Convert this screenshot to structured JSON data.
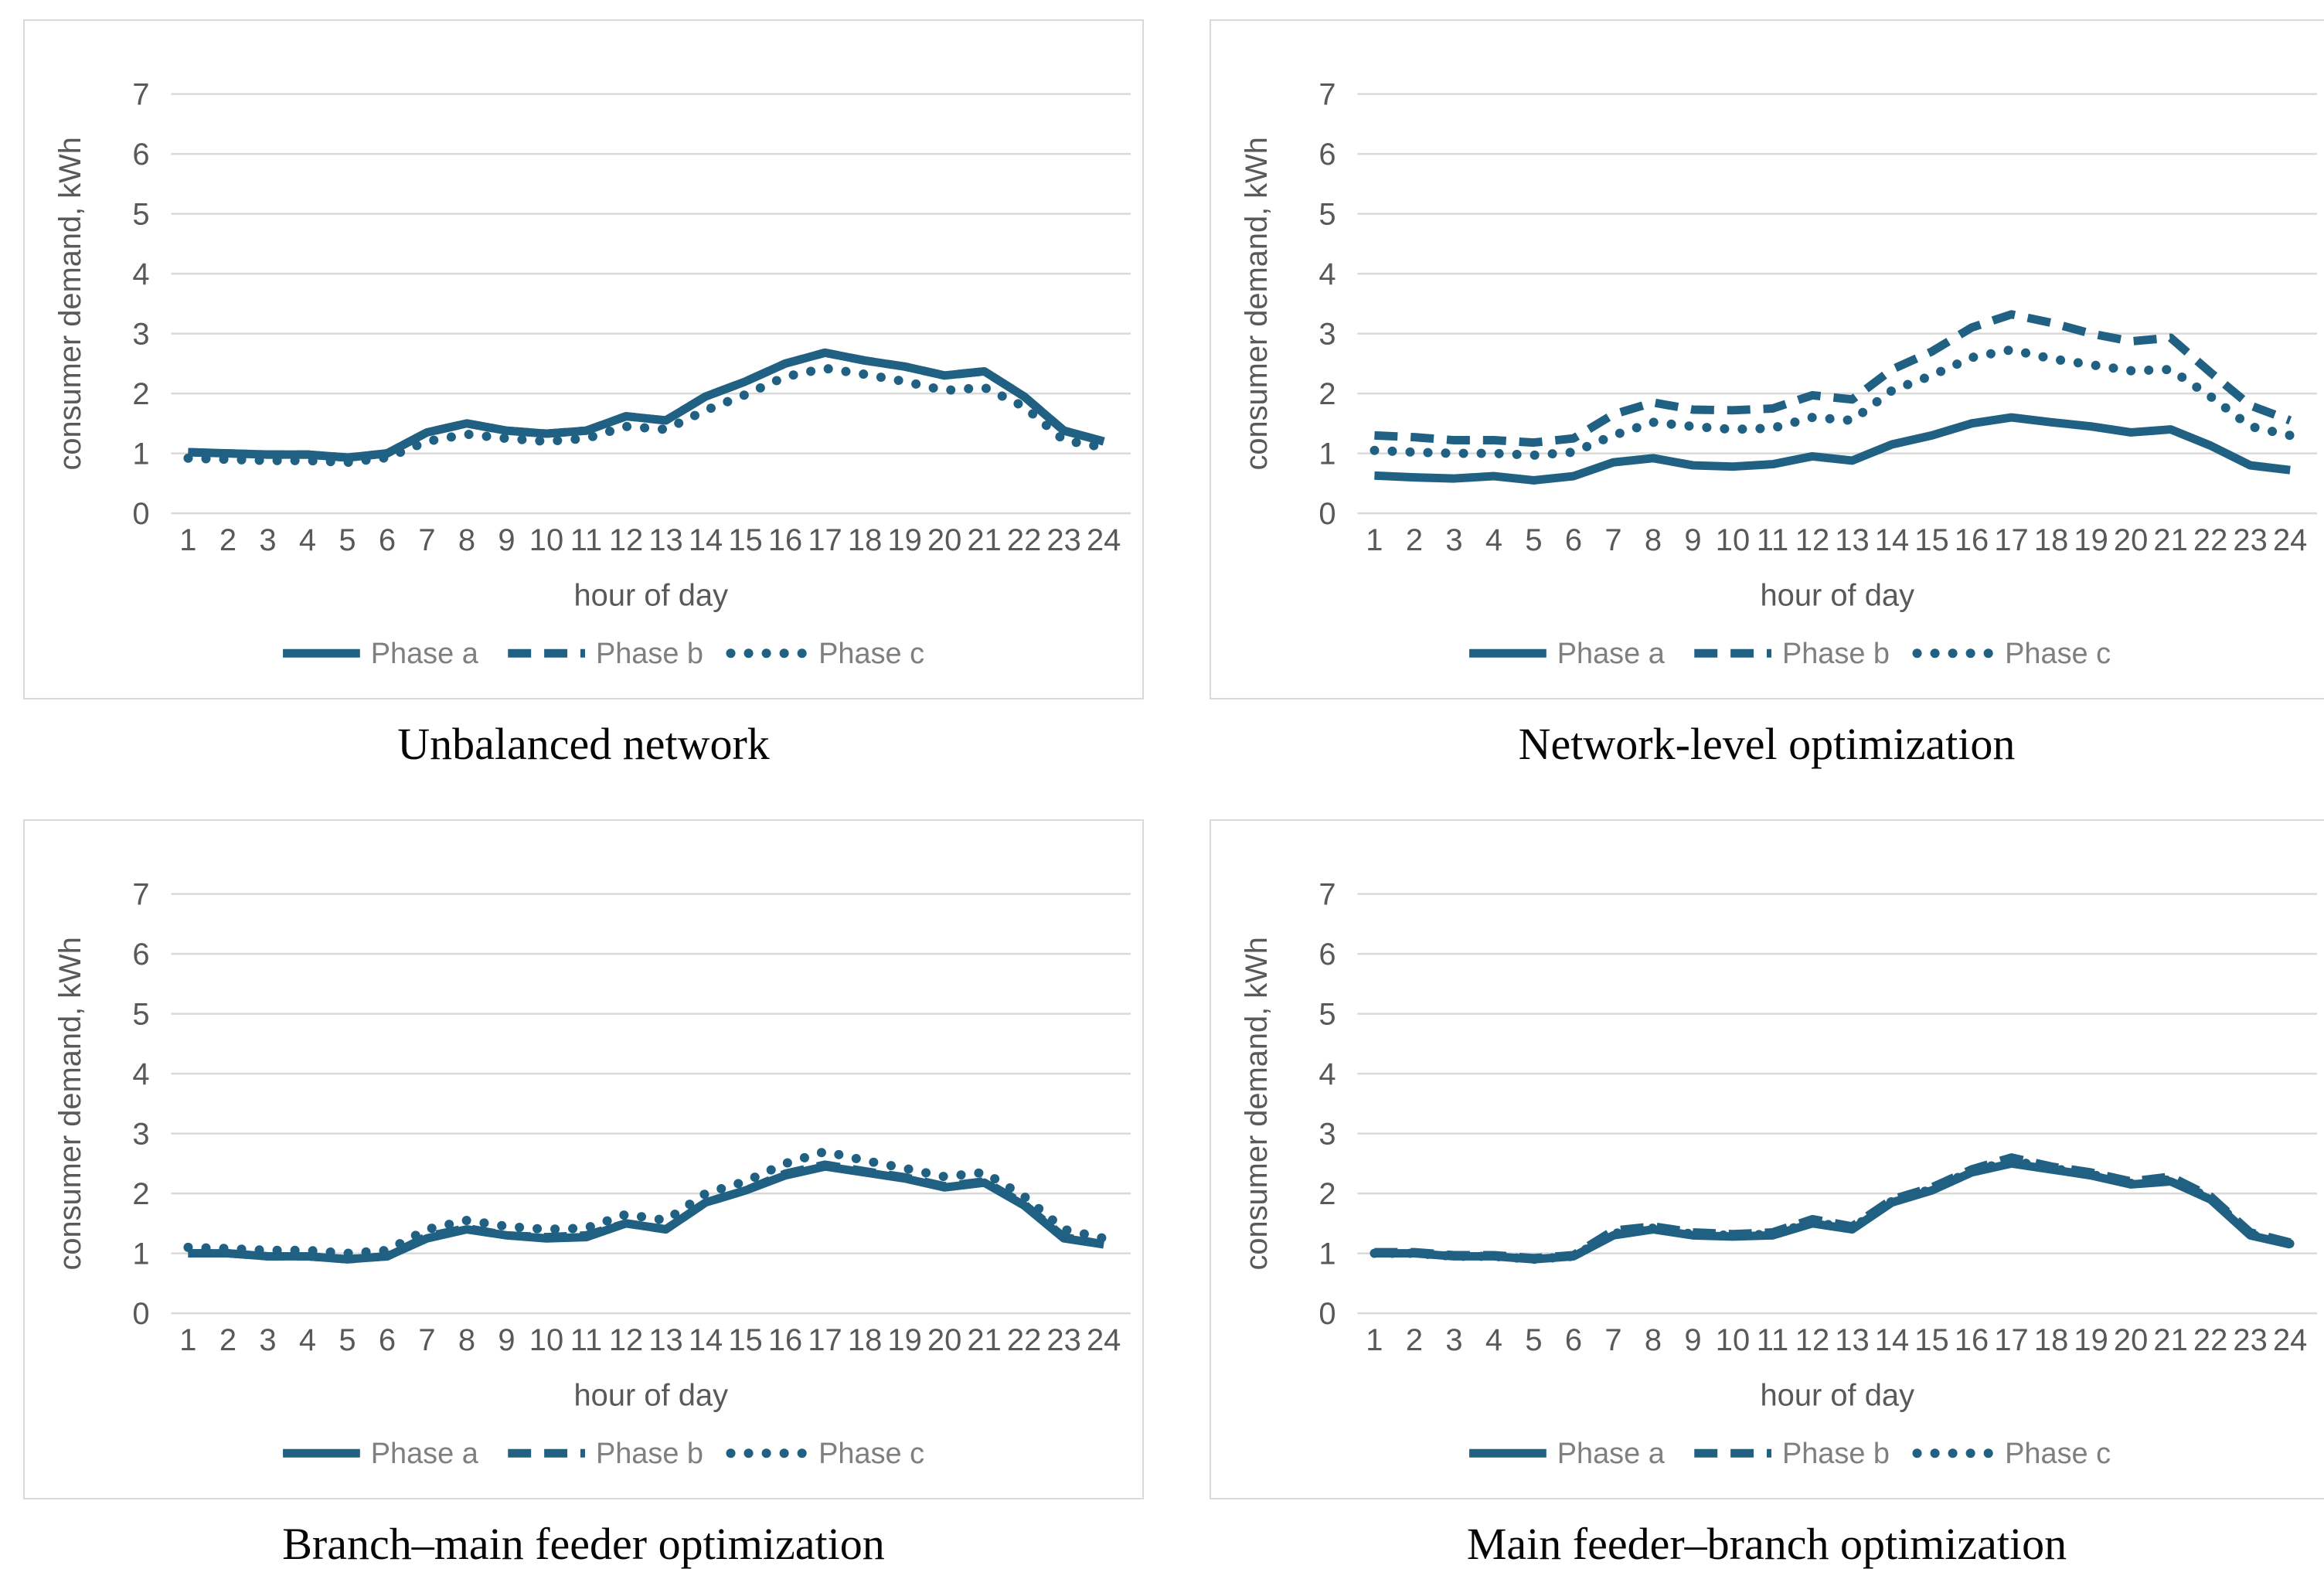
{
  "shared": {
    "y_label": "consumer demand, kWh",
    "x_label": "hour of day",
    "legend": [
      {
        "label": "Phase a",
        "style": "solid"
      },
      {
        "label": "Phase b",
        "style": "dashed"
      },
      {
        "label": "Phase c",
        "style": "dotted"
      }
    ],
    "colors": {
      "line": "#206082",
      "grid": "#D9D9D9",
      "tick_text": "#595959",
      "axis_title_text": "#595959",
      "legend_text": "#7F7F7F",
      "caption_text": "#060606",
      "panel_border": "#D9D9D9"
    },
    "ylim": [
      0,
      7
    ],
    "y_ticks": [
      0,
      1,
      2,
      3,
      4,
      5,
      6,
      7
    ],
    "grid": "horizontal-only",
    "legend_position": "bottom-center"
  },
  "chart_data": [
    {
      "type": "line",
      "caption": "Unbalanced network",
      "xlabel": "hour of day",
      "ylabel": "consumer demand, kWh",
      "ylim": [
        0,
        7
      ],
      "x": [
        1,
        2,
        3,
        4,
        5,
        6,
        7,
        8,
        9,
        10,
        11,
        12,
        13,
        14,
        15,
        16,
        17,
        18,
        19,
        20,
        21,
        22,
        23,
        24
      ],
      "series": [
        {
          "name": "Phase a",
          "style": "solid",
          "values": [
            1.02,
            1.0,
            0.98,
            0.98,
            0.93,
            1.0,
            1.35,
            1.5,
            1.38,
            1.33,
            1.38,
            1.62,
            1.55,
            1.95,
            2.2,
            2.5,
            2.68,
            2.55,
            2.45,
            2.3,
            2.37,
            1.95,
            1.38,
            1.2
          ]
        },
        {
          "name": "Phase b",
          "style": "dashed",
          "values": [
            1.02,
            1.0,
            0.98,
            0.98,
            0.93,
            1.0,
            1.35,
            1.5,
            1.38,
            1.33,
            1.38,
            1.62,
            1.55,
            1.95,
            2.2,
            2.5,
            2.68,
            2.55,
            2.45,
            2.3,
            2.37,
            1.95,
            1.38,
            1.2
          ]
        },
        {
          "name": "Phase c",
          "style": "dotted",
          "values": [
            0.92,
            0.9,
            0.88,
            0.88,
            0.85,
            0.93,
            1.2,
            1.32,
            1.25,
            1.2,
            1.25,
            1.45,
            1.4,
            1.72,
            1.98,
            2.28,
            2.42,
            2.32,
            2.2,
            2.05,
            2.1,
            1.78,
            1.22,
            1.1
          ]
        }
      ]
    },
    {
      "type": "line",
      "caption": "Network-level optimization",
      "xlabel": "hour of day",
      "ylabel": "consumer demand, kWh",
      "ylim": [
        0,
        7
      ],
      "x": [
        1,
        2,
        3,
        4,
        5,
        6,
        7,
        8,
        9,
        10,
        11,
        12,
        13,
        14,
        15,
        16,
        17,
        18,
        19,
        20,
        21,
        22,
        23,
        24
      ],
      "series": [
        {
          "name": "Phase a",
          "style": "solid",
          "values": [
            0.63,
            0.6,
            0.58,
            0.62,
            0.55,
            0.62,
            0.85,
            0.92,
            0.8,
            0.78,
            0.82,
            0.95,
            0.88,
            1.15,
            1.3,
            1.5,
            1.6,
            1.52,
            1.45,
            1.35,
            1.4,
            1.13,
            0.8,
            0.72
          ]
        },
        {
          "name": "Phase b",
          "style": "dashed",
          "values": [
            1.3,
            1.27,
            1.22,
            1.22,
            1.18,
            1.25,
            1.65,
            1.85,
            1.73,
            1.72,
            1.75,
            1.97,
            1.9,
            2.4,
            2.7,
            3.1,
            3.32,
            3.18,
            3.0,
            2.87,
            2.93,
            2.35,
            1.8,
            1.55
          ]
        },
        {
          "name": "Phase c",
          "style": "dotted",
          "values": [
            1.05,
            1.02,
            1.0,
            1.0,
            0.97,
            1.02,
            1.3,
            1.52,
            1.45,
            1.4,
            1.42,
            1.6,
            1.55,
            2.05,
            2.3,
            2.6,
            2.73,
            2.58,
            2.48,
            2.38,
            2.4,
            1.95,
            1.45,
            1.3
          ]
        }
      ]
    },
    {
      "type": "line",
      "caption": "Branch–main feeder optimization",
      "xlabel": "hour of day",
      "ylabel": "consumer demand, kWh",
      "ylim": [
        0,
        7
      ],
      "x": [
        1,
        2,
        3,
        4,
        5,
        6,
        7,
        8,
        9,
        10,
        11,
        12,
        13,
        14,
        15,
        16,
        17,
        18,
        19,
        20,
        21,
        22,
        23,
        24
      ],
      "series": [
        {
          "name": "Phase a",
          "style": "solid",
          "values": [
            1.0,
            1.0,
            0.95,
            0.95,
            0.9,
            0.95,
            1.25,
            1.4,
            1.3,
            1.25,
            1.27,
            1.5,
            1.4,
            1.85,
            2.05,
            2.3,
            2.45,
            2.35,
            2.25,
            2.1,
            2.18,
            1.8,
            1.25,
            1.15
          ]
        },
        {
          "name": "Phase b",
          "style": "dashed",
          "values": [
            1.0,
            1.0,
            0.95,
            0.95,
            0.9,
            0.95,
            1.28,
            1.42,
            1.3,
            1.27,
            1.3,
            1.5,
            1.4,
            1.85,
            2.05,
            2.33,
            2.48,
            2.37,
            2.27,
            2.12,
            2.2,
            1.82,
            1.27,
            1.15
          ]
        },
        {
          "name": "Phase c",
          "style": "dotted",
          "values": [
            1.1,
            1.08,
            1.05,
            1.05,
            1.0,
            1.05,
            1.4,
            1.55,
            1.45,
            1.4,
            1.42,
            1.65,
            1.55,
            2.0,
            2.2,
            2.5,
            2.7,
            2.55,
            2.42,
            2.28,
            2.35,
            1.95,
            1.4,
            1.25
          ]
        }
      ]
    },
    {
      "type": "line",
      "caption": "Main feeder–branch optimization",
      "xlabel": "hour of day",
      "ylabel": "consumer demand, kWh",
      "ylim": [
        0,
        7
      ],
      "x": [
        1,
        2,
        3,
        4,
        5,
        6,
        7,
        8,
        9,
        10,
        11,
        12,
        13,
        14,
        15,
        16,
        17,
        18,
        19,
        20,
        21,
        22,
        23,
        24
      ],
      "series": [
        {
          "name": "Phase a",
          "style": "solid",
          "values": [
            1.0,
            1.0,
            0.95,
            0.95,
            0.9,
            0.95,
            1.3,
            1.4,
            1.3,
            1.28,
            1.3,
            1.5,
            1.4,
            1.85,
            2.05,
            2.35,
            2.5,
            2.4,
            2.3,
            2.15,
            2.2,
            1.9,
            1.3,
            1.15
          ]
        },
        {
          "name": "Phase b",
          "style": "dashed",
          "values": [
            1.02,
            1.02,
            0.97,
            0.97,
            0.92,
            0.97,
            1.38,
            1.45,
            1.35,
            1.32,
            1.35,
            1.57,
            1.45,
            1.9,
            2.1,
            2.4,
            2.6,
            2.45,
            2.35,
            2.2,
            2.28,
            1.95,
            1.35,
            1.18
          ]
        },
        {
          "name": "Phase c",
          "style": "dotted",
          "values": [
            1.0,
            1.0,
            0.95,
            0.95,
            0.9,
            0.95,
            1.33,
            1.42,
            1.32,
            1.3,
            1.32,
            1.52,
            1.42,
            1.87,
            2.07,
            2.37,
            2.55,
            2.42,
            2.32,
            2.17,
            2.23,
            1.92,
            1.32,
            1.16
          ]
        }
      ]
    }
  ]
}
